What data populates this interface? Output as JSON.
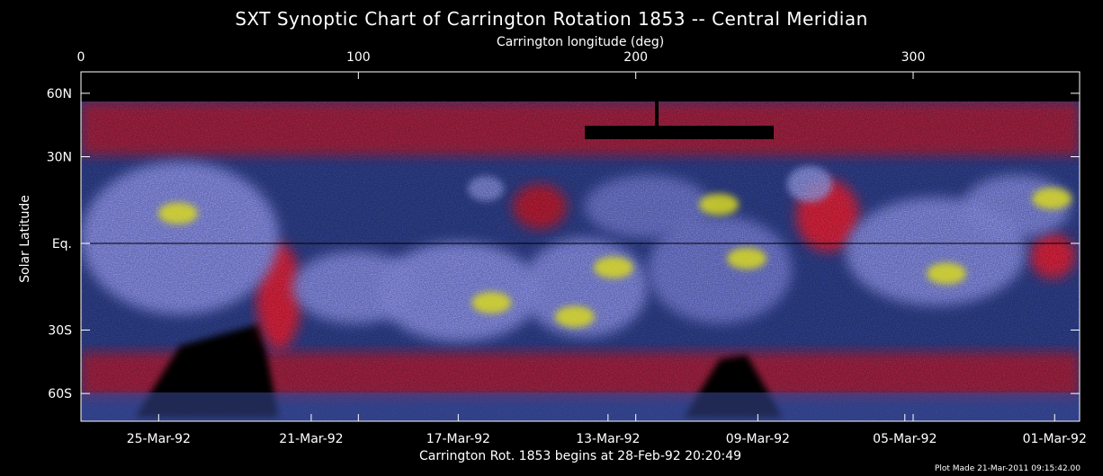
{
  "chart_data": {
    "type": "heatmap",
    "title": "SXT Synoptic Chart of Carrington Rotation 1853 -- Central Meridian",
    "top_axis": {
      "label": "Carrington longitude (deg)",
      "range": [
        0,
        360
      ],
      "ticks": [
        {
          "value": 0,
          "label": "0"
        },
        {
          "value": 100,
          "label": "100"
        },
        {
          "value": 200,
          "label": "200"
        },
        {
          "value": 300,
          "label": "300"
        }
      ]
    },
    "y_axis": {
      "label": "Solar Latitude",
      "ticks": [
        {
          "value": 60,
          "label": "60N"
        },
        {
          "value": 30,
          "label": "30N"
        },
        {
          "value": 0,
          "label": "Eq."
        },
        {
          "value": -30,
          "label": "30S"
        },
        {
          "value": -60,
          "label": "60S"
        }
      ]
    },
    "bottom_axis": {
      "ticks": [
        {
          "longitude": 28,
          "label": "25-Mar-92"
        },
        {
          "longitude": 83,
          "label": "21-Mar-92"
        },
        {
          "longitude": 136,
          "label": "17-Mar-92"
        },
        {
          "longitude": 190,
          "label": "13-Mar-92"
        },
        {
          "longitude": 244,
          "label": "09-Mar-92"
        },
        {
          "longitude": 297,
          "label": "05-Mar-92"
        },
        {
          "longitude": 351,
          "label": "01-Mar-92"
        }
      ]
    },
    "footer": "Carrington Rot. 1853 begins at 28-Feb-92 20:20:49",
    "credit": "Plot Made 21-Mar-2011 09:15:42.00",
    "grid": false,
    "colors": {
      "background": "#000000",
      "quiet": "#2e3f8a",
      "coronal_hole": "#d8203c",
      "loops": "#8a90e6",
      "bright": "#d8d820"
    },
    "bright_regions": [
      {
        "lon": 35,
        "lat": 10
      },
      {
        "lon": 148,
        "lat": -20
      },
      {
        "lon": 178,
        "lat": -25
      },
      {
        "lon": 192,
        "lat": -8
      },
      {
        "lon": 230,
        "lat": 13
      },
      {
        "lon": 240,
        "lat": -5
      },
      {
        "lon": 312,
        "lat": -10
      },
      {
        "lon": 350,
        "lat": 15
      }
    ]
  }
}
